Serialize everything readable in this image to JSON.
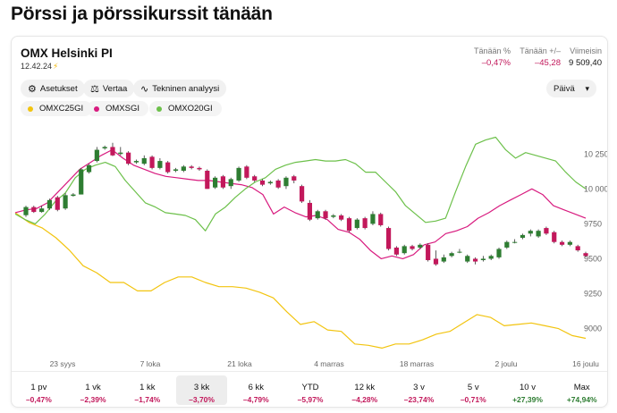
{
  "page": {
    "title": "Pörssi ja pörssikurssit tänään"
  },
  "index": {
    "name": "OMX Helsinki PI",
    "time": "12.42.24",
    "time_icon": "bolt-icon"
  },
  "stats": [
    {
      "label": "Tänään %",
      "value": "–0,47%",
      "tone": "neg"
    },
    {
      "label": "Tänään +/–",
      "value": "–45,28",
      "tone": "neg"
    },
    {
      "label": "Viimeisin",
      "value": "9 509,40",
      "tone": "plain"
    }
  ],
  "toolbar": {
    "settings_label": "Asetukset",
    "compare_label": "Vertaa",
    "technical_label": "Tekninen analyysi",
    "period_value": "Päivä"
  },
  "legend": [
    {
      "name": "OMXC25GI",
      "color": "#f2c40f"
    },
    {
      "name": "OMXSGI",
      "color": "#d81b7f"
    },
    {
      "name": "OMXO20GI",
      "color": "#6cc04a"
    }
  ],
  "chart_data": {
    "type": "line",
    "x_tick_labels": [
      "23 syys",
      "7 loka",
      "21 loka",
      "4 marras",
      "18 marras",
      "2 joulu",
      "16 joulu"
    ],
    "y_tick_labels": [
      "10 250",
      "10 000",
      "9750",
      "9500",
      "9250",
      "9000"
    ],
    "ylim": [
      8850,
      10450
    ],
    "up_color": "#2e7d32",
    "down_color": "#c2185b",
    "candles": [
      [
        9812,
        9870,
        9800,
        9880
      ],
      [
        9870,
        9835,
        9828,
        9880
      ],
      [
        9835,
        9860,
        9830,
        9880
      ],
      [
        9860,
        9920,
        9850,
        9930
      ],
      [
        9940,
        9850,
        9840,
        9950
      ],
      [
        9860,
        9955,
        9850,
        9970
      ],
      [
        9950,
        9960,
        9945,
        9970
      ],
      [
        9960,
        10140,
        9960,
        10150
      ],
      [
        10120,
        10170,
        10110,
        10180
      ],
      [
        10200,
        10280,
        10190,
        10300
      ],
      [
        10290,
        10300,
        10280,
        10310
      ],
      [
        10300,
        10240,
        10235,
        10330
      ],
      [
        10250,
        10260,
        10240,
        10300
      ],
      [
        10260,
        10180,
        10170,
        10270
      ],
      [
        10190,
        10200,
        10180,
        10210
      ],
      [
        10180,
        10220,
        10170,
        10240
      ],
      [
        10230,
        10150,
        10140,
        10240
      ],
      [
        10150,
        10200,
        10140,
        10220
      ],
      [
        10190,
        10120,
        10110,
        10200
      ],
      [
        10130,
        10140,
        10120,
        10150
      ],
      [
        10130,
        10160,
        10120,
        10170
      ],
      [
        10160,
        10150,
        10140,
        10170
      ],
      [
        10150,
        10140,
        10130,
        10160
      ],
      [
        10130,
        10000,
        10000,
        10140
      ],
      [
        10010,
        10080,
        10000,
        10090
      ],
      [
        10090,
        10010,
        10000,
        10100
      ],
      [
        10020,
        10070,
        10000,
        10080
      ],
      [
        10060,
        10150,
        10050,
        10160
      ],
      [
        10160,
        10080,
        10070,
        10170
      ],
      [
        10090,
        10060,
        10050,
        10100
      ],
      [
        10060,
        10030,
        10020,
        10070
      ],
      [
        10040,
        10050,
        10030,
        10060
      ],
      [
        10060,
        10010,
        10000,
        10070
      ],
      [
        10020,
        10080,
        10000,
        10090
      ],
      [
        10090,
        10060,
        10040,
        10100
      ],
      [
        10020,
        9910,
        9900,
        10030
      ],
      [
        9900,
        9780,
        9770,
        9920
      ],
      [
        9790,
        9840,
        9780,
        9850
      ],
      [
        9840,
        9790,
        9780,
        9850
      ],
      [
        9800,
        9810,
        9790,
        9820
      ],
      [
        9810,
        9780,
        9770,
        9820
      ],
      [
        9790,
        9700,
        9690,
        9800
      ],
      [
        9720,
        9780,
        9710,
        9790
      ],
      [
        9790,
        9720,
        9710,
        9800
      ],
      [
        9750,
        9820,
        9740,
        9840
      ],
      [
        9820,
        9740,
        9730,
        9830
      ],
      [
        9720,
        9570,
        9560,
        9730
      ],
      [
        9580,
        9530,
        9520,
        9590
      ],
      [
        9540,
        9590,
        9530,
        9600
      ],
      [
        9590,
        9570,
        9560,
        9600
      ],
      [
        9580,
        9600,
        9570,
        9610
      ],
      [
        9600,
        9490,
        9480,
        9610
      ],
      [
        9500,
        9460,
        9450,
        9560
      ],
      [
        9480,
        9510,
        9470,
        9530
      ],
      [
        9520,
        9540,
        9510,
        9550
      ],
      [
        9550,
        9550,
        9540,
        9570
      ],
      [
        9480,
        9520,
        9470,
        9530
      ],
      [
        9500,
        9480,
        9460,
        9510
      ],
      [
        9490,
        9500,
        9480,
        9520
      ],
      [
        9500,
        9520,
        9490,
        9530
      ],
      [
        9510,
        9570,
        9500,
        9580
      ],
      [
        9580,
        9620,
        9570,
        9630
      ],
      [
        9620,
        9620,
        9610,
        9640
      ],
      [
        9650,
        9670,
        9640,
        9680
      ],
      [
        9680,
        9700,
        9660,
        9710
      ],
      [
        9660,
        9700,
        9650,
        9710
      ],
      [
        9720,
        9680,
        9670,
        9730
      ],
      [
        9690,
        9620,
        9610,
        9700
      ],
      [
        9620,
        9600,
        9590,
        9630
      ],
      [
        9600,
        9620,
        9590,
        9630
      ],
      [
        9590,
        9560,
        9550,
        9600
      ],
      [
        9540,
        9520,
        9510,
        9550
      ]
    ],
    "series": [
      {
        "name": "OMXC25GI",
        "color": "#f2c40f",
        "values": [
          9830,
          9760,
          9720,
          9650,
          9560,
          9450,
          9400,
          9330,
          9330,
          9270,
          9270,
          9330,
          9370,
          9370,
          9330,
          9300,
          9300,
          9290,
          9260,
          9220,
          9120,
          9030,
          9050,
          8990,
          8980,
          8890,
          8880,
          8860,
          8890,
          8890,
          8920,
          8960,
          8980,
          9040,
          9100,
          9080,
          9020,
          9030,
          9040,
          9020,
          9000,
          8950,
          8930
        ]
      },
      {
        "name": "OMXSGI",
        "color": "#d81b7f",
        "values": [
          9830,
          9850,
          9860,
          9900,
          9980,
          10060,
          10140,
          10190,
          10240,
          10280,
          10220,
          10170,
          10140,
          10110,
          10090,
          10080,
          10070,
          10060,
          10060,
          10050,
          10040,
          10030,
          10010,
          9960,
          9820,
          9870,
          9830,
          9800,
          9810,
          9780,
          9710,
          9690,
          9640,
          9560,
          9500,
          9520,
          9500,
          9530,
          9600,
          9620,
          9680,
          9700,
          9730,
          9790,
          9830,
          9880,
          9920,
          9960,
          10000,
          9960,
          9880,
          9850,
          9820,
          9790
        ]
      },
      {
        "name": "OMXO20GI",
        "color": "#6cc04a",
        "values": [
          9820,
          9780,
          9750,
          9820,
          9910,
          9970,
          10080,
          10140,
          10170,
          10190,
          10160,
          10060,
          9980,
          9900,
          9870,
          9830,
          9820,
          9810,
          9780,
          9700,
          9820,
          9870,
          9940,
          10000,
          10050,
          10080,
          10140,
          10170,
          10190,
          10200,
          10210,
          10200,
          10200,
          10210,
          10180,
          10120,
          10120,
          10050,
          9980,
          9880,
          9820,
          9760,
          9770,
          9790,
          9980,
          10160,
          10320,
          10350,
          10370,
          10280,
          10220,
          10260,
          10240,
          10220,
          10200,
          10120,
          10050,
          10000
        ]
      }
    ]
  },
  "ranges": [
    {
      "label": "1 pv",
      "value": "–0,47%",
      "tone": "neg"
    },
    {
      "label": "1 vk",
      "value": "–2,39%",
      "tone": "neg"
    },
    {
      "label": "1 kk",
      "value": "–1,74%",
      "tone": "neg"
    },
    {
      "label": "3 kk",
      "value": "–3,70%",
      "tone": "neg",
      "active": true
    },
    {
      "label": "6 kk",
      "value": "–4,79%",
      "tone": "neg"
    },
    {
      "label": "YTD",
      "value": "–5,97%",
      "tone": "neg"
    },
    {
      "label": "12 kk",
      "value": "–4,28%",
      "tone": "neg"
    },
    {
      "label": "3 v",
      "value": "–23,74%",
      "tone": "neg"
    },
    {
      "label": "5 v",
      "value": "–0,71%",
      "tone": "neg"
    },
    {
      "label": "10 v",
      "value": "+27,39%",
      "tone": "pos"
    },
    {
      "label": "Max",
      "value": "+74,94%",
      "tone": "pos"
    }
  ]
}
